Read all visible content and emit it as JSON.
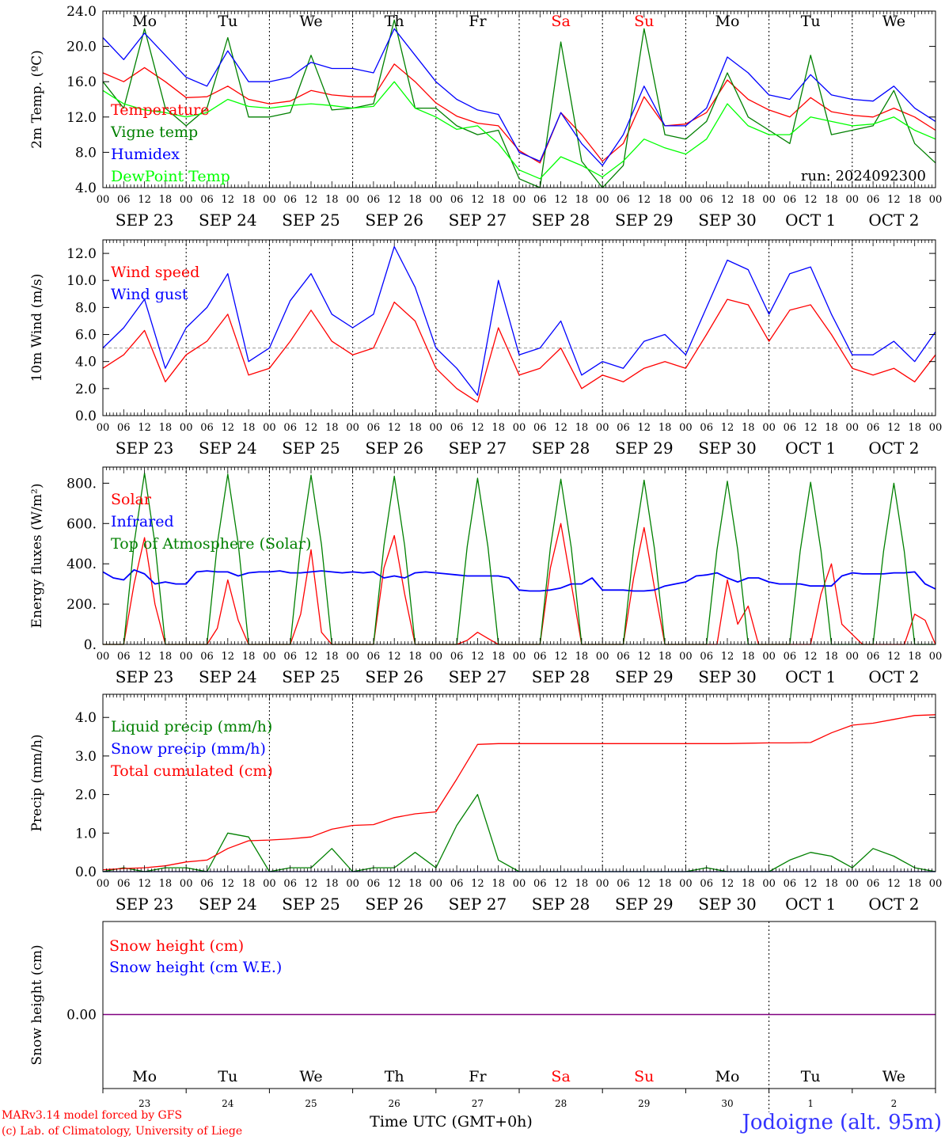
{
  "footer": {
    "model": "MARv3.14 model forced by GFS",
    "lab": "(c) Lab. of Climatology, University of Liege",
    "xlabel": "Time UTC (GMT+0h)",
    "station": "Jodoigne (alt. 95m)"
  },
  "weekdays": [
    {
      "label": "Mo",
      "color": "#000000"
    },
    {
      "label": "Tu",
      "color": "#000000"
    },
    {
      "label": "We",
      "color": "#000000"
    },
    {
      "label": "Th",
      "color": "#000000"
    },
    {
      "label": "Fr",
      "color": "#000000"
    },
    {
      "label": "Sa",
      "color": "#ff0000"
    },
    {
      "label": "Su",
      "color": "#ff0000"
    },
    {
      "label": "Mo",
      "color": "#000000"
    },
    {
      "label": "Tu",
      "color": "#000000"
    },
    {
      "label": "We",
      "color": "#000000"
    }
  ],
  "dates": [
    "SEP 23",
    "SEP 24",
    "SEP 25",
    "SEP 26",
    "SEP 27",
    "SEP 28",
    "SEP 29",
    "SEP 30",
    "OCT  1",
    "OCT  2"
  ],
  "day_numbers": [
    "23",
    "24",
    "25",
    "26",
    "27",
    "28",
    "29",
    "30",
    "1",
    "2"
  ],
  "hour_ticks": [
    "00",
    "06",
    "12",
    "18"
  ],
  "colors": {
    "red": "#ff0000",
    "green": "#008000",
    "blue": "#0000ff",
    "lightgreen": "#00ff00",
    "gray": "#999999"
  },
  "chart_data": [
    {
      "id": "temperature",
      "type": "line",
      "ylabel": "2m Temp. (ºC)",
      "ylim": [
        4,
        24
      ],
      "yticks": [
        "4.0",
        "8.0",
        "12.0",
        "16.0",
        "20.0",
        "24.0"
      ],
      "annotation": "run: 2024092300",
      "x_hours": [
        0,
        6,
        12,
        18,
        24,
        30,
        36,
        42,
        48,
        54,
        60,
        66,
        72,
        78,
        84,
        90,
        96,
        102,
        108,
        114,
        120,
        126,
        132,
        138,
        144,
        150,
        156,
        162,
        168,
        174,
        180,
        186,
        192,
        198,
        204,
        210,
        216,
        222,
        228,
        234,
        240
      ],
      "series": [
        {
          "name": "Temperature",
          "color": "#ff0000",
          "values": [
            17.0,
            16.0,
            17.6,
            16.0,
            14.2,
            14.3,
            15.5,
            14.0,
            13.5,
            13.8,
            15.0,
            14.5,
            14.3,
            14.3,
            18.0,
            16.0,
            13.6,
            12.1,
            11.3,
            11.0,
            8.2,
            6.8,
            12.5,
            10.0,
            7.0,
            9.0,
            14.3,
            11.0,
            11.2,
            12.5,
            16.2,
            14.0,
            12.8,
            12.0,
            14.2,
            12.6,
            12.2,
            12.0,
            13.0,
            12.0,
            10.5
          ]
        },
        {
          "name": "Vigne temp",
          "color": "#008000",
          "values": [
            16.0,
            13.0,
            22.0,
            13.0,
            11.0,
            13.0,
            21.0,
            12.0,
            12.0,
            12.5,
            19.0,
            12.8,
            13.0,
            13.5,
            23.0,
            13.0,
            13.0,
            11.0,
            10.0,
            10.5,
            5.0,
            4.0,
            20.5,
            7.0,
            4.0,
            6.5,
            22.0,
            10.0,
            9.5,
            11.5,
            17.0,
            12.0,
            10.5,
            9.0,
            19.0,
            10.0,
            10.5,
            11.0,
            15.0,
            9.0,
            6.8
          ]
        },
        {
          "name": "Humidex",
          "color": "#0000ff",
          "values": [
            21.0,
            18.5,
            21.5,
            19.0,
            16.5,
            15.5,
            19.5,
            16.0,
            16.0,
            16.5,
            18.2,
            17.5,
            17.5,
            17.0,
            22.0,
            19.0,
            16.0,
            14.0,
            12.8,
            12.3,
            8.0,
            7.0,
            12.5,
            9.0,
            6.5,
            10.0,
            15.5,
            11.0,
            11.0,
            13.0,
            18.8,
            17.0,
            14.5,
            14.0,
            16.8,
            14.5,
            14.0,
            13.8,
            15.5,
            13.0,
            11.5
          ]
        },
        {
          "name": "DewPoint Temp",
          "color": "#00ff00",
          "values": [
            15.0,
            13.5,
            12.8,
            12.5,
            12.0,
            12.5,
            14.0,
            13.2,
            13.0,
            13.3,
            13.5,
            13.3,
            13.0,
            13.2,
            16.0,
            13.0,
            12.0,
            10.6,
            11.0,
            9.0,
            6.0,
            5.0,
            7.5,
            6.5,
            5.2,
            7.0,
            9.5,
            8.5,
            7.8,
            9.5,
            13.5,
            11.0,
            10.0,
            10.0,
            12.0,
            11.5,
            11.0,
            11.2,
            12.0,
            10.5,
            9.5
          ]
        }
      ]
    },
    {
      "id": "wind",
      "type": "line",
      "ylabel": "10m Wind (m/s)",
      "ylim": [
        0,
        13
      ],
      "yticks": [
        "0.0",
        "2.0",
        "4.0",
        "6.0",
        "8.0",
        "10.0",
        "12.0"
      ],
      "reference_line": 5.0,
      "x_hours": [
        0,
        6,
        12,
        18,
        24,
        30,
        36,
        42,
        48,
        54,
        60,
        66,
        72,
        78,
        84,
        90,
        96,
        102,
        108,
        114,
        120,
        126,
        132,
        138,
        144,
        150,
        156,
        162,
        168,
        174,
        180,
        186,
        192,
        198,
        204,
        210,
        216,
        222,
        228,
        234,
        240
      ],
      "series": [
        {
          "name": "Wind speed",
          "color": "#ff0000",
          "values": [
            3.5,
            4.5,
            6.3,
            2.5,
            4.5,
            5.5,
            7.5,
            3.0,
            3.5,
            5.5,
            7.8,
            5.5,
            4.5,
            5.0,
            8.4,
            7.0,
            3.5,
            2.0,
            1.0,
            6.5,
            3.0,
            3.5,
            5.0,
            2.0,
            3.0,
            2.5,
            3.5,
            4.0,
            3.5,
            6.0,
            8.6,
            8.2,
            5.5,
            7.8,
            8.2,
            6.0,
            3.5,
            3.0,
            3.5,
            2.5,
            4.5
          ]
        },
        {
          "name": "Wind gust",
          "color": "#0000ff",
          "values": [
            5.0,
            6.5,
            8.6,
            3.5,
            6.5,
            8.0,
            10.5,
            4.0,
            5.0,
            8.5,
            10.5,
            7.5,
            6.5,
            7.5,
            12.5,
            9.5,
            5.0,
            3.5,
            1.5,
            10.0,
            4.5,
            5.0,
            7.0,
            3.0,
            4.0,
            3.5,
            5.5,
            6.0,
            4.5,
            8.0,
            11.5,
            10.8,
            7.5,
            10.5,
            11.0,
            7.5,
            4.5,
            4.5,
            5.5,
            4.0,
            6.2
          ]
        }
      ]
    },
    {
      "id": "energy",
      "type": "line",
      "ylabel": "Energy fluxes (W/m²)",
      "ylim": [
        0,
        880
      ],
      "yticks": [
        "0.",
        "200.",
        "400.",
        "600.",
        "800."
      ],
      "x_hours": [
        0,
        3,
        6,
        9,
        12,
        15,
        18,
        21,
        24,
        27,
        30,
        33,
        36,
        39,
        42,
        45,
        48,
        51,
        54,
        57,
        60,
        63,
        66,
        69,
        72,
        75,
        78,
        81,
        84,
        87,
        90,
        93,
        96,
        99,
        102,
        105,
        108,
        111,
        114,
        117,
        120,
        123,
        126,
        129,
        132,
        135,
        138,
        141,
        144,
        147,
        150,
        153,
        156,
        159,
        162,
        165,
        168,
        171,
        174,
        177,
        180,
        183,
        186,
        189,
        192,
        195,
        198,
        201,
        204,
        207,
        210,
        213,
        216,
        219,
        222,
        225,
        228,
        231,
        234,
        237,
        240
      ],
      "series": [
        {
          "name": "Solar",
          "color": "#ff0000",
          "values": [
            0,
            0,
            0,
            300,
            530,
            200,
            0,
            0,
            0,
            0,
            0,
            80,
            320,
            120,
            0,
            0,
            0,
            0,
            0,
            150,
            470,
            60,
            0,
            0,
            0,
            0,
            0,
            380,
            540,
            250,
            0,
            0,
            0,
            0,
            0,
            20,
            60,
            30,
            0,
            0,
            0,
            0,
            0,
            380,
            600,
            300,
            0,
            0,
            0,
            0,
            0,
            330,
            580,
            280,
            0,
            0,
            0,
            0,
            0,
            0,
            320,
            100,
            190,
            0,
            0,
            0,
            0,
            0,
            0,
            250,
            400,
            100,
            50,
            0,
            0,
            0,
            0,
            0,
            150,
            120,
            0
          ]
        },
        {
          "name": "Infrared",
          "color": "#0000ff",
          "values": [
            360,
            330,
            320,
            370,
            350,
            300,
            310,
            300,
            300,
            360,
            365,
            360,
            360,
            340,
            355,
            360,
            360,
            365,
            355,
            355,
            360,
            365,
            360,
            355,
            360,
            355,
            360,
            330,
            340,
            330,
            355,
            360,
            355,
            350,
            345,
            340,
            340,
            340,
            340,
            330,
            270,
            265,
            265,
            270,
            280,
            300,
            300,
            330,
            270,
            270,
            270,
            265,
            265,
            270,
            290,
            300,
            310,
            340,
            345,
            355,
            330,
            310,
            330,
            330,
            310,
            300,
            300,
            300,
            290,
            290,
            290,
            340,
            355,
            350,
            350,
            350,
            355,
            355,
            360,
            300,
            275
          ]
        },
        {
          "name": "Top of Atmosphere (Solar)",
          "color": "#008000",
          "values": [
            0,
            0,
            0,
            500,
            850,
            500,
            0,
            0,
            0,
            0,
            0,
            500,
            845,
            500,
            0,
            0,
            0,
            0,
            0,
            495,
            840,
            495,
            0,
            0,
            0,
            0,
            0,
            490,
            835,
            490,
            0,
            0,
            0,
            0,
            0,
            485,
            825,
            485,
            0,
            0,
            0,
            0,
            0,
            480,
            820,
            480,
            0,
            0,
            0,
            0,
            0,
            475,
            815,
            475,
            0,
            0,
            0,
            0,
            0,
            470,
            810,
            470,
            0,
            0,
            0,
            0,
            0,
            465,
            805,
            465,
            0,
            0,
            0,
            0,
            0,
            460,
            800,
            460,
            0,
            0,
            0
          ]
        }
      ]
    },
    {
      "id": "precip",
      "type": "line",
      "ylabel": "Precip (mm/h)",
      "ylim": [
        0,
        4.6
      ],
      "yticks": [
        "0.0",
        "1.0",
        "2.0",
        "3.0",
        "4.0"
      ],
      "x_hours": [
        0,
        6,
        12,
        18,
        24,
        30,
        36,
        42,
        48,
        54,
        60,
        66,
        72,
        78,
        84,
        90,
        96,
        102,
        108,
        114,
        120,
        126,
        132,
        138,
        144,
        150,
        156,
        162,
        168,
        174,
        180,
        186,
        192,
        198,
        204,
        210,
        216,
        222,
        228,
        234,
        240
      ],
      "series": [
        {
          "name": "Liquid precip (mm/h)",
          "color": "#008000",
          "values": [
            0.0,
            0.1,
            0.0,
            0.1,
            0.1,
            0.0,
            1.0,
            0.9,
            0.0,
            0.1,
            0.1,
            0.6,
            0.0,
            0.1,
            0.1,
            0.5,
            0.1,
            1.2,
            2.0,
            0.3,
            0.0,
            0.0,
            0.0,
            0.0,
            0.0,
            0.0,
            0.0,
            0.0,
            0.0,
            0.1,
            0.0,
            0.0,
            0.0,
            0.3,
            0.5,
            0.4,
            0.1,
            0.6,
            0.4,
            0.1,
            0.0
          ]
        },
        {
          "name": "Snow precip (mm/h)",
          "color": "#0000ff",
          "values": [
            0,
            0,
            0,
            0,
            0,
            0,
            0,
            0,
            0,
            0,
            0,
            0,
            0,
            0,
            0,
            0,
            0,
            0,
            0,
            0,
            0,
            0,
            0,
            0,
            0,
            0,
            0,
            0,
            0,
            0,
            0,
            0,
            0,
            0,
            0,
            0,
            0,
            0,
            0,
            0,
            0
          ]
        },
        {
          "name": "Total cumulated (cm)",
          "color": "#ff0000",
          "values": [
            0.05,
            0.08,
            0.1,
            0.15,
            0.25,
            0.3,
            0.6,
            0.8,
            0.82,
            0.85,
            0.9,
            1.1,
            1.2,
            1.22,
            1.4,
            1.5,
            1.55,
            2.4,
            3.3,
            3.32,
            3.32,
            3.32,
            3.32,
            3.32,
            3.32,
            3.32,
            3.32,
            3.32,
            3.32,
            3.32,
            3.32,
            3.33,
            3.34,
            3.34,
            3.35,
            3.6,
            3.8,
            3.85,
            3.95,
            4.05,
            4.07
          ]
        }
      ]
    },
    {
      "id": "snow",
      "type": "line",
      "ylabel": "Snow height (cm)",
      "yticks": [
        "0.00"
      ],
      "series": [
        {
          "name": "Snow height (cm)",
          "color": "#ff0000",
          "values": [
            0,
            0
          ]
        },
        {
          "name": "Snow height (cm W.E.)",
          "color": "#0000ff",
          "values": [
            0,
            0
          ]
        }
      ]
    }
  ]
}
